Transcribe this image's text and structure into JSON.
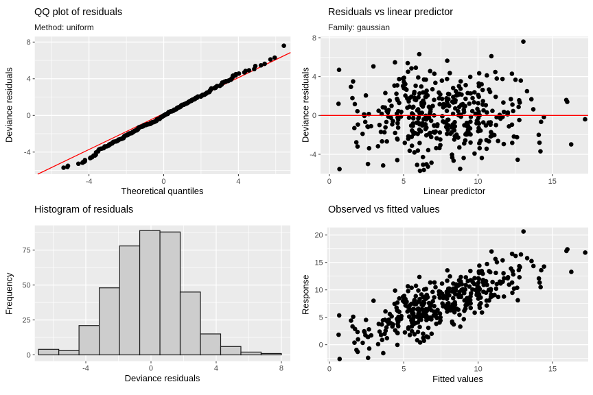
{
  "style": {
    "panel_bg": "#EBEBEB",
    "grid_color": "#FFFFFF",
    "point_color": "#000000",
    "ref_line_color": "#FF0000",
    "bar_fill": "#CDCDCD",
    "bar_stroke": "#1A1A1A",
    "tick_label_color": "#4D4D4D",
    "tick_mark_color": "#333333"
  },
  "points_model": {
    "n": 400,
    "seed": 9,
    "lp_mean": 7.3,
    "lp_sd": 2.9,
    "res_sd": 2.1,
    "theo_sd": 2.16,
    "forced": [
      {
        "lp": 13.05,
        "res": 7.6
      },
      {
        "lp": 6.1,
        "res": -5.7
      },
      {
        "lp": 8.8,
        "res": -5.5
      },
      {
        "lp": 2.6,
        "res": -5.0
      },
      {
        "lp": 17.2,
        "res": -0.4
      },
      {
        "lp": 0.62,
        "res": 1.2
      },
      {
        "lp": 6.05,
        "res": 6.3
      },
      {
        "lp": 10.9,
        "res": 6.1
      },
      {
        "lp": 14.2,
        "res": -3.7
      },
      {
        "lp": 16.0,
        "res": 1.4
      },
      {
        "lp": 1.6,
        "res": 3.5
      },
      {
        "lp": 1.9,
        "res": -3.2
      }
    ]
  },
  "chart_data": [
    {
      "id": "qq",
      "type": "scatter",
      "title": "QQ plot of residuals",
      "subtitle": "Method: uniform",
      "xlabel": "Theoretical quantiles",
      "ylabel": "Deviance residuals",
      "xlim": [
        -6.9,
        6.79
      ],
      "ylim": [
        -6.41,
        8.6
      ],
      "xticks": {
        "values": [
          -4,
          0,
          4
        ],
        "labels": [
          "-4",
          "0",
          "4"
        ]
      },
      "yticks": {
        "values": [
          -4,
          0,
          4,
          8
        ],
        "labels": [
          "-4",
          "0",
          "4",
          "8"
        ]
      },
      "ref_line": {
        "kind": "abline",
        "slope": 0.98,
        "intercept": 0.2
      },
      "points_source": "qq",
      "n_points": 400
    },
    {
      "id": "rvp",
      "type": "scatter",
      "title": "Residuals vs linear predictor",
      "subtitle": "Family: gaussian",
      "xlabel": "Linear predictor",
      "ylabel": "Deviance residuals",
      "xlim": [
        -0.59,
        17.41
      ],
      "ylim": [
        -6.05,
        8.12
      ],
      "xticks": {
        "values": [
          0,
          5,
          10,
          15
        ],
        "labels": [
          "0",
          "5",
          "10",
          "15"
        ]
      },
      "yticks": {
        "values": [
          -4,
          0,
          4,
          8
        ],
        "labels": [
          "-4",
          "0",
          "4",
          "8"
        ]
      },
      "ref_line": {
        "kind": "hline",
        "y": 0
      },
      "points_source": "resid",
      "n_points": 400
    },
    {
      "id": "hist",
      "type": "histogram",
      "title": "Histogram of residuals",
      "subtitle": null,
      "xlabel": "Deviance residuals",
      "ylabel": "Frequency",
      "xlim": [
        -7.13,
        8.55
      ],
      "ylim": [
        -4.52,
        92.7
      ],
      "xticks": {
        "values": [
          -4,
          0,
          4,
          8
        ],
        "labels": [
          "-4",
          "0",
          "4",
          "8"
        ]
      },
      "yticks": {
        "values": [
          0,
          25,
          50,
          75
        ],
        "labels": [
          "0",
          "25",
          "50",
          "75"
        ]
      },
      "bins": {
        "start": -6.9,
        "width": 1.2417,
        "counts": [
          4,
          3,
          21,
          48,
          78,
          89,
          88,
          45,
          15,
          6,
          2,
          1
        ]
      },
      "n_points": 400
    },
    {
      "id": "ovf",
      "type": "scatter",
      "title": "Observed vs fitted values",
      "subtitle": null,
      "xlabel": "Fitted values",
      "ylabel": "Response",
      "xlim": [
        -0.15,
        17.4
      ],
      "ylim": [
        -3.08,
        21.38
      ],
      "xticks": {
        "values": [
          0,
          5,
          10,
          15
        ],
        "labels": [
          "0",
          "5",
          "10",
          "15"
        ]
      },
      "yticks": {
        "values": [
          0,
          5,
          10,
          15,
          20
        ],
        "labels": [
          "0",
          "5",
          "10",
          "15",
          "20"
        ]
      },
      "points_source": "obsfit",
      "n_points": 400
    }
  ]
}
